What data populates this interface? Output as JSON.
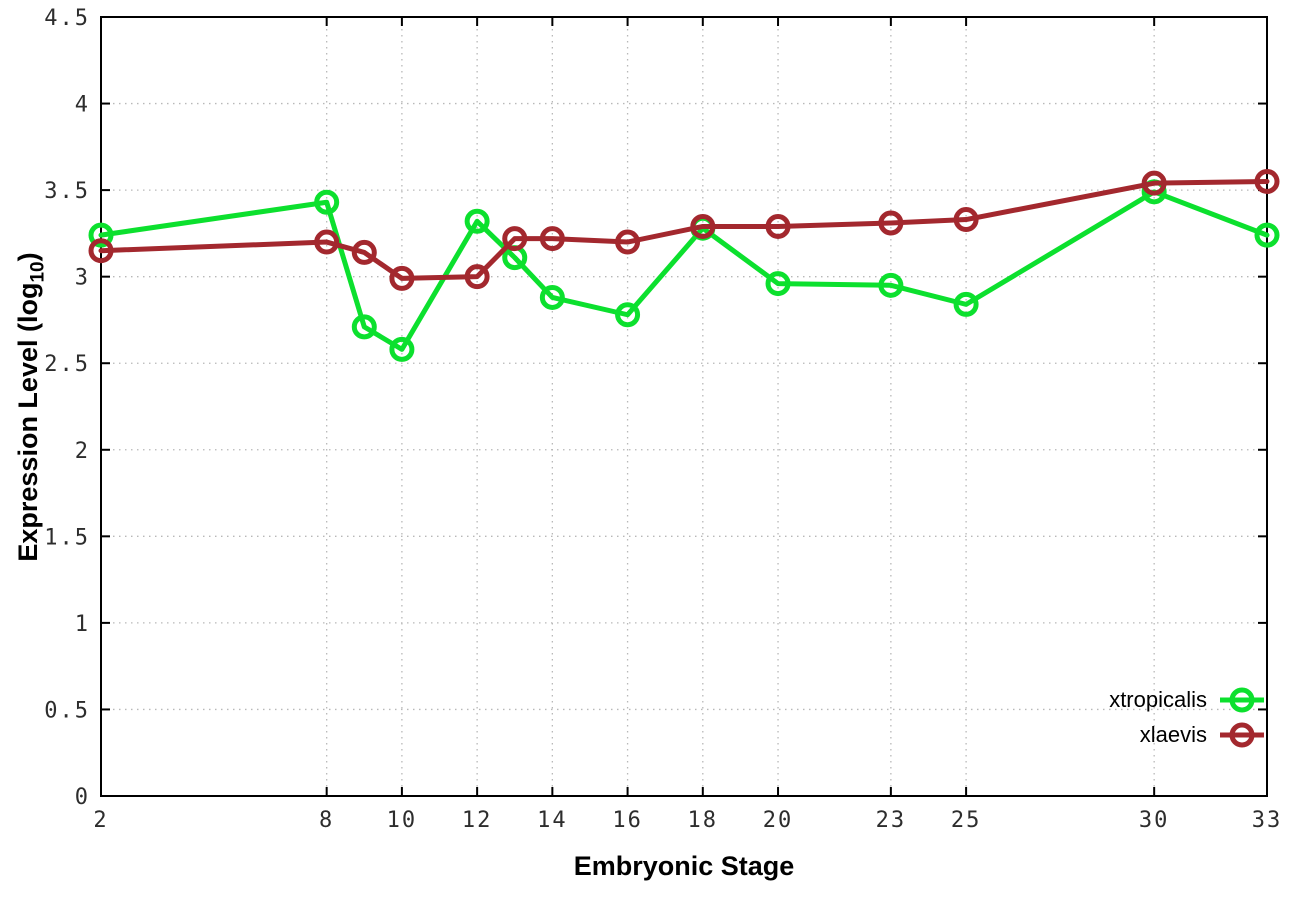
{
  "chart_data": {
    "type": "line",
    "xlabel": "Embryonic Stage",
    "ylabel_prefix": "Expression Level (log",
    "ylabel_sub": "10",
    "ylabel_suffix": ")",
    "xlim": [
      2,
      33
    ],
    "ylim": [
      0,
      4.5
    ],
    "grid": true,
    "legend_position": "bottom-right",
    "x": [
      2,
      8,
      9,
      10,
      12,
      13,
      14,
      16,
      18,
      20,
      23,
      25,
      30,
      33
    ],
    "x_ticks": [
      2,
      8,
      10,
      12,
      14,
      16,
      18,
      20,
      23,
      25,
      30,
      33
    ],
    "x_tick_labels": [
      "2",
      "8",
      "10",
      "12",
      "14",
      "16",
      "18",
      "20",
      "23",
      "25",
      "30",
      "33"
    ],
    "y_ticks": [
      0,
      0.5,
      1,
      1.5,
      2,
      2.5,
      3,
      3.5,
      4,
      4.5
    ],
    "y_tick_labels": [
      "0",
      "0.5",
      "1",
      "1.5",
      "2",
      "2.5",
      "3",
      "3.5",
      "4",
      "4.5"
    ],
    "series": [
      {
        "name": "xtropicalis",
        "color": "#0ce02e",
        "marker": "open-circle",
        "values": [
          3.24,
          3.43,
          2.71,
          2.58,
          3.32,
          3.11,
          2.88,
          2.78,
          3.28,
          2.96,
          2.95,
          2.84,
          3.49,
          3.24
        ]
      },
      {
        "name": "xlaevis",
        "color": "#a3282e",
        "marker": "open-circle",
        "values": [
          3.15,
          3.2,
          3.14,
          2.99,
          3.0,
          3.22,
          3.22,
          3.2,
          3.29,
          3.29,
          3.31,
          3.33,
          3.54,
          3.55
        ]
      }
    ],
    "colors": {
      "border": "#000000",
      "grid": "#b8b8b8",
      "tick_text": "#2d2d2d"
    }
  }
}
